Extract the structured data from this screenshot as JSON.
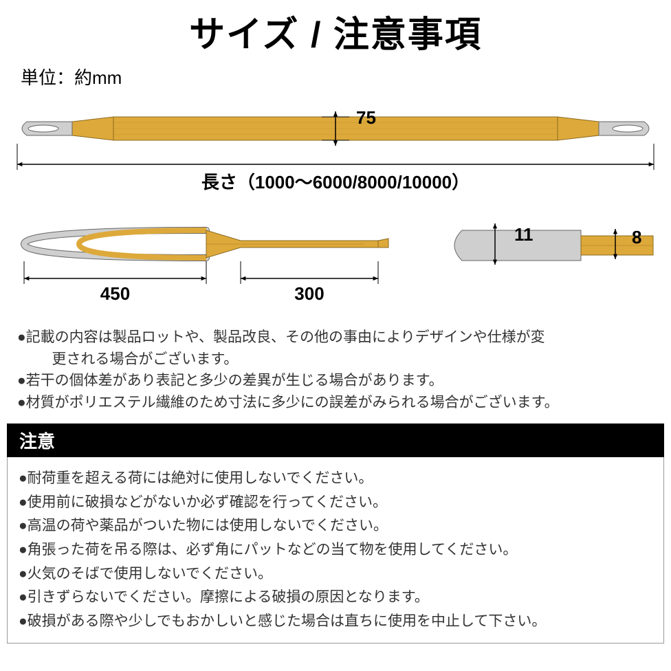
{
  "title": "サイズ / 注意事項",
  "unit_label": "単位：約mm",
  "diagram": {
    "sling_color": "#dda93a",
    "sling_stroke": "#8a6a1f",
    "sleeve_color": "#cfcfcf",
    "sleeve_stroke": "#666666",
    "dim_color": "#000000",
    "dim_fontsize": 26,
    "width_label": "75",
    "length_label": "長さ（1000～6000/8000/10000）",
    "loop_length_label": "450",
    "taper_length_label": "300",
    "side_thick_label": "11",
    "side_thin_label": "8"
  },
  "notes": [
    "●記載の内容は製品ロットや、製品改良、その他の事由によりデザインや仕様が変",
    "　更される場合がございます。",
    "●若干の個体差があり表記と多少の差異が生じる場合があります。",
    "●材質がポリエステル繊維のため寸法に多少にの誤差がみられる場合がございます。"
  ],
  "caution_header": "注意",
  "caution_lines": [
    "●耐荷重を超える荷には絶対に使用しないでください。",
    "●使用前に破損などがないか必ず確認を行ってください。",
    "●高温の荷や薬品がついた物には使用しないでください。",
    "●角張った荷を吊る際は、必ず角にパットなどの当て物を使用してください。",
    "●火気のそばで使用しないでください。",
    "●引きずらないでください。摩擦による破損の原因となります。",
    "●破損がある際や少しでもおかしいと感じた場合は直ちに使用を中止して下さい。"
  ]
}
